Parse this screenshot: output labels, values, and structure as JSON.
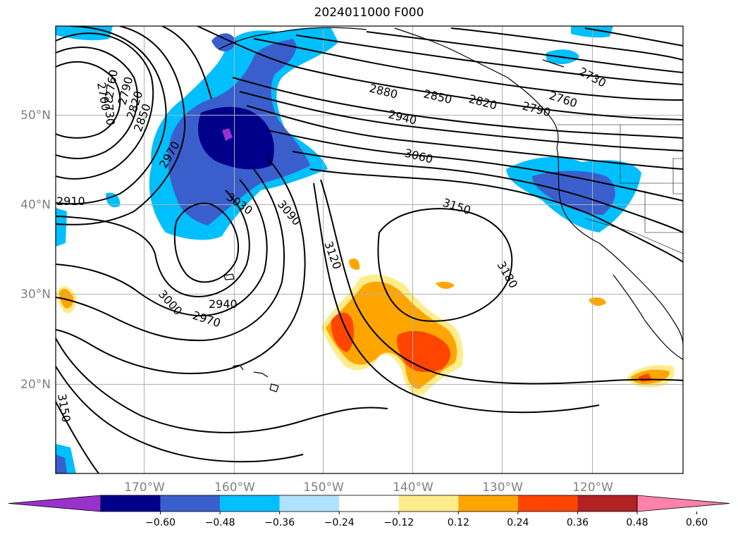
{
  "title": "2024011000 F000",
  "map": {
    "region": "North-East Pacific",
    "lat_range": [
      10,
      60
    ],
    "lon_range": [
      -180,
      -110
    ],
    "lat_ticks": [
      {
        "value": 20,
        "label": "20°N"
      },
      {
        "value": 30,
        "label": "30°N"
      },
      {
        "value": 40,
        "label": "40°N"
      },
      {
        "value": 50,
        "label": "50°N"
      }
    ],
    "lon_ticks": [
      {
        "value": -170,
        "label": "170°W"
      },
      {
        "value": -160,
        "label": "160°W"
      },
      {
        "value": -150,
        "label": "150°W"
      },
      {
        "value": -140,
        "label": "140°W"
      },
      {
        "value": -130,
        "label": "130°W"
      },
      {
        "value": -120,
        "label": "120°W"
      }
    ],
    "grid": true,
    "contour_color": "#000000",
    "contour_labels": [
      "2730",
      "2760",
      "2790",
      "2820",
      "2850",
      "2880",
      "2940",
      "3060",
      "3150",
      "3180",
      "3120",
      "3090",
      "3030",
      "2970",
      "2940",
      "2970",
      "3000",
      "2910",
      "2850",
      "2820",
      "2790",
      "2760",
      "2730",
      "2700",
      "3150"
    ]
  },
  "colorbar": {
    "orientation": "horizontal",
    "extend": "both",
    "ticks": [
      "−0.60",
      "−0.48",
      "−0.36",
      "−0.24",
      "−0.12",
      "0.12",
      "0.24",
      "0.36",
      "0.48",
      "0.60"
    ],
    "colors": [
      "#9932cc",
      "#00008b",
      "#3a5fcd",
      "#00bfff",
      "#b0e2ff",
      "#ffffff",
      "#ffec8b",
      "#ffa500",
      "#ff4500",
      "#b22222",
      "#ff82ab"
    ]
  }
}
